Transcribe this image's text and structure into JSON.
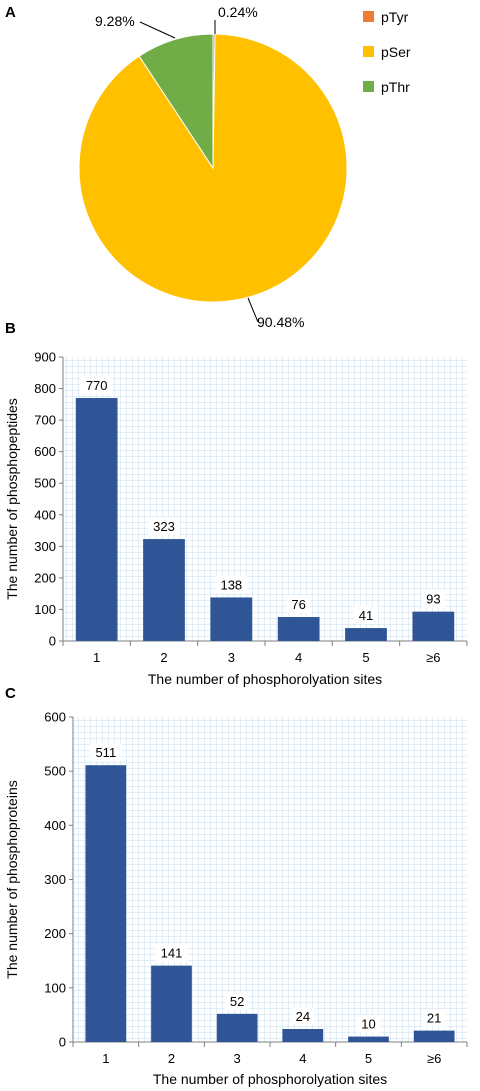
{
  "chart_data": [
    {
      "panel": "A",
      "type": "pie",
      "slices": [
        {
          "label": "pTyr",
          "value": 0.24,
          "display": "0.24%",
          "color": "#ed7d31"
        },
        {
          "label": "pSer",
          "value": 90.48,
          "display": "90.48%",
          "color": "#ffc000"
        },
        {
          "label": "pThr",
          "value": 9.28,
          "display": "9.28%",
          "color": "#70ad47"
        }
      ],
      "legend": [
        "pTyr",
        "pSer",
        "pThr"
      ],
      "legend_position": "right"
    },
    {
      "panel": "B",
      "type": "bar",
      "categories": [
        "1",
        "2",
        "3",
        "4",
        "5",
        "≥6"
      ],
      "values": [
        770,
        323,
        138,
        76,
        41,
        93
      ],
      "data_labels": [
        "770",
        "323",
        "138",
        "76",
        "41",
        "93"
      ],
      "xlabel": "The number of phosphorolyation sites",
      "ylabel": "The number of phosphopeptides",
      "ylim": [
        0,
        900
      ],
      "yticks": [
        "0",
        "100",
        "200",
        "300",
        "400",
        "500",
        "600",
        "700",
        "800",
        "900"
      ],
      "bar_color": "#2f5597",
      "grid": true
    },
    {
      "panel": "C",
      "type": "bar",
      "categories": [
        "1",
        "2",
        "3",
        "4",
        "5",
        "≥6"
      ],
      "values": [
        511,
        141,
        52,
        24,
        10,
        21
      ],
      "data_labels": [
        "511",
        "141",
        "52",
        "24",
        "10",
        "21"
      ],
      "xlabel": "The number of phosphorolyation sites",
      "ylabel": "The number of phosphoproteins",
      "ylim": [
        0,
        600
      ],
      "yticks": [
        "0",
        "100",
        "200",
        "300",
        "400",
        "500",
        "600"
      ],
      "bar_color": "#2f5597",
      "grid": true
    }
  ]
}
